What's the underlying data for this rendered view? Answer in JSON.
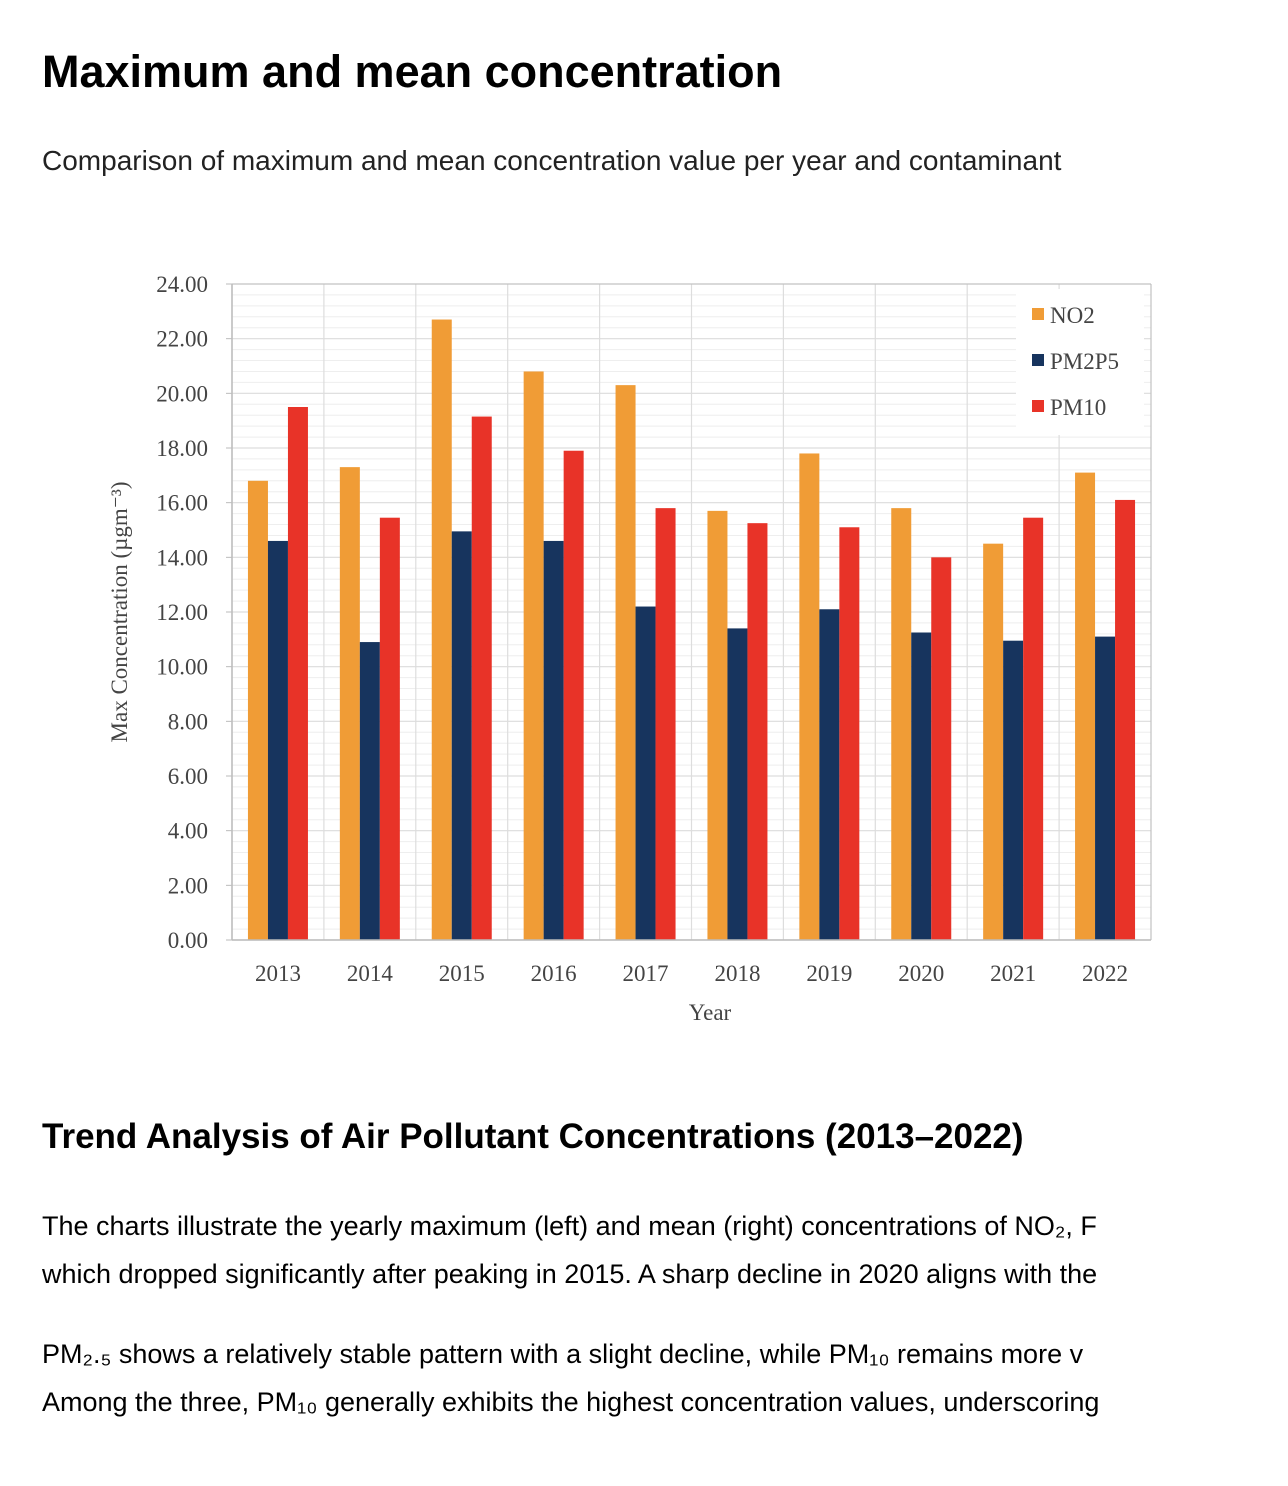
{
  "header": {
    "title": "Maximum and mean concentration",
    "subtitle": "Comparison of maximum and mean concentration value per year and contaminant"
  },
  "colors": {
    "NO2": "#f09c36",
    "PM2P5": "#17345e",
    "PM10": "#e83328",
    "grid": "#dddddd",
    "grid_minor": "#eeeeee",
    "axis": "#bbbbbb",
    "text": "#444444"
  },
  "chart_data": {
    "type": "bar",
    "ylabel": "Max Concentration (µgm⁻³)",
    "xlabel": "Year",
    "ylim": [
      0,
      24
    ],
    "yticks": [
      "0.00",
      "2.00",
      "4.00",
      "6.00",
      "8.00",
      "10.00",
      "12.00",
      "14.00",
      "16.00",
      "18.00",
      "20.00",
      "22.00",
      "24.00"
    ],
    "grid": true,
    "legend_position": "top-right",
    "categories": [
      "2013",
      "2014",
      "2015",
      "2016",
      "2017",
      "2018",
      "2019",
      "2020",
      "2021",
      "2022"
    ],
    "series": [
      {
        "name": "NO2",
        "values": [
          16.8,
          17.3,
          22.7,
          20.8,
          20.3,
          15.7,
          17.8,
          15.8,
          14.5,
          17.1
        ]
      },
      {
        "name": "PM2P5",
        "values": [
          14.6,
          10.9,
          14.95,
          14.6,
          12.2,
          11.4,
          12.1,
          11.25,
          10.95,
          11.1
        ]
      },
      {
        "name": "PM10",
        "values": [
          19.5,
          15.45,
          19.15,
          17.9,
          15.8,
          15.25,
          15.1,
          14.0,
          15.45,
          16.1
        ]
      }
    ]
  },
  "analysis": {
    "heading": "Trend Analysis of Air Pollutant Concentrations (2013–2022)",
    "p1_line1": "The charts illustrate the yearly maximum (left) and mean (right) concentrations of NO₂, F",
    "p1_line2": "which dropped significantly after peaking in 2015. A sharp decline in 2020 aligns with the",
    "p2_line1": "PM₂.₅ shows a relatively stable pattern with a slight decline, while PM₁₀ remains more v",
    "p2_line2": "Among the three, PM₁₀ generally exhibits the highest concentration values, underscoring"
  }
}
